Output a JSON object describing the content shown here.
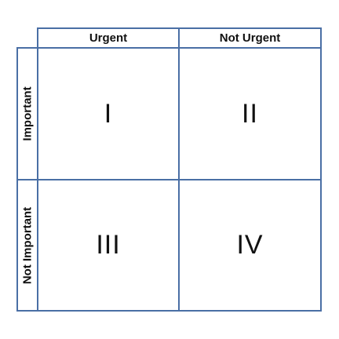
{
  "matrix": {
    "columns": [
      "Urgent",
      "Not Urgent"
    ],
    "rows": [
      "Important",
      "Not Important"
    ],
    "quadrants": [
      "I",
      "II",
      "III",
      "IV"
    ],
    "colors": {
      "border": "#4a6fa5",
      "text": "#111111",
      "background": "#ffffff"
    }
  }
}
